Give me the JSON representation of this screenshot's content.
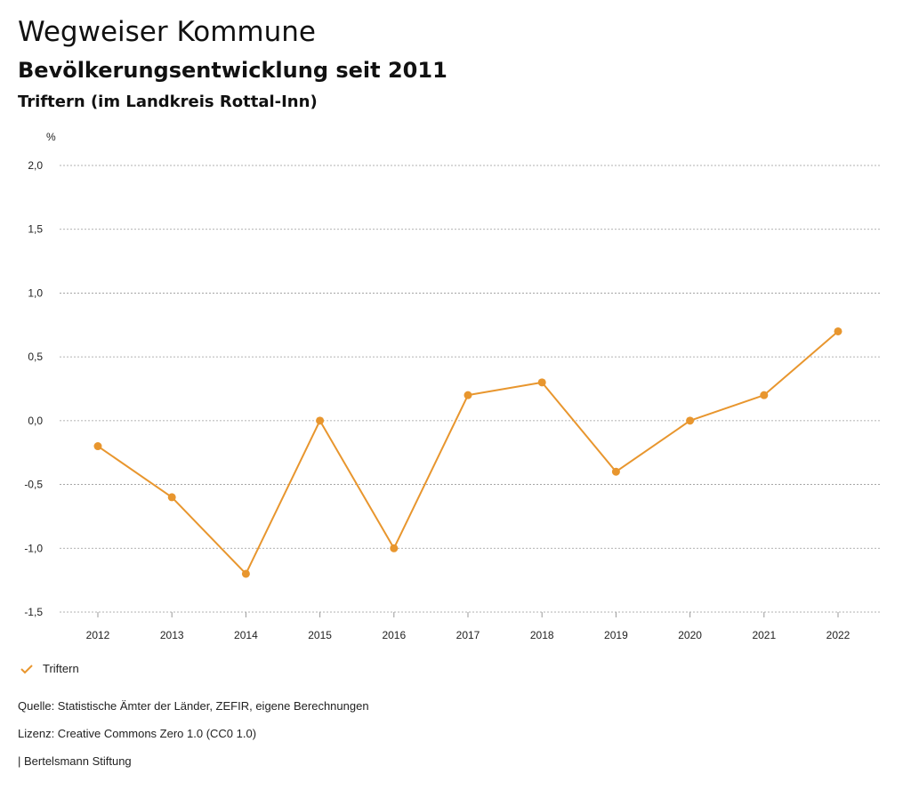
{
  "header": {
    "title": "Wegweiser Kommune",
    "subtitle": "Bevölkerungsentwicklung seit 2011",
    "region": "Triftern (im Landkreis Rottal-Inn)"
  },
  "chart_data": {
    "type": "line",
    "title": "Bevölkerungsentwicklung seit 2011",
    "ylabel": "%",
    "xlabel": "",
    "ylim": [
      -1.5,
      2.0
    ],
    "yticks": [
      2.0,
      1.5,
      1.0,
      0.5,
      0.0,
      -0.5,
      -1.0,
      -1.5
    ],
    "ytick_labels": [
      "2,0",
      "1,5",
      "1,0",
      "0,5",
      "0,0",
      "-0,5",
      "-1,0",
      "-1,5"
    ],
    "categories": [
      "2012",
      "2013",
      "2014",
      "2015",
      "2016",
      "2017",
      "2018",
      "2019",
      "2020",
      "2021",
      "2022"
    ],
    "grid": true,
    "series": [
      {
        "name": "Triftern",
        "color": "#e8962e",
        "values": [
          -0.2,
          -0.6,
          -1.2,
          0.0,
          -1.0,
          0.2,
          0.3,
          -0.4,
          0.0,
          0.2,
          0.7
        ]
      }
    ],
    "legend": "bottom-left"
  },
  "footer": {
    "source": "Quelle: Statistische Ämter der Länder, ZEFIR, eigene Berechnungen",
    "license": "Lizenz: Creative Commons Zero 1.0 (CC0 1.0)",
    "publisher": "| Bertelsmann Stiftung"
  }
}
